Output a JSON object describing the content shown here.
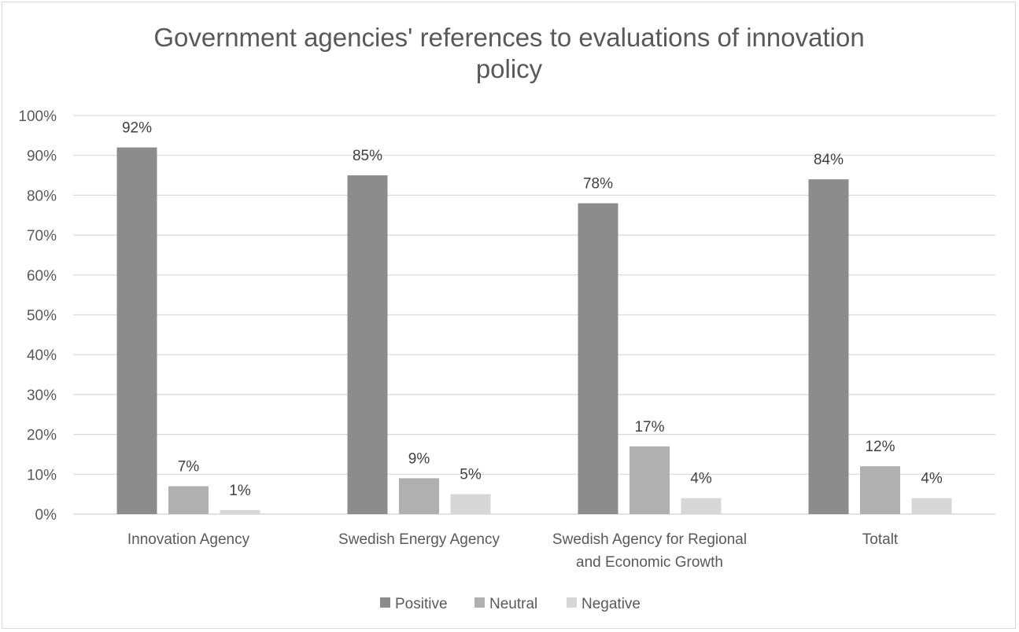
{
  "chart_data": {
    "type": "bar",
    "title": "Government agencies' references to evaluations of innovation policy",
    "title_lines": [
      "Government agencies' references to evaluations of innovation",
      "policy"
    ],
    "categories": [
      "Innovation Agency",
      "Swedish Energy Agency",
      "Swedish Agency for Regional and Economic Growth",
      "Totalt"
    ],
    "category_lines": [
      [
        "Innovation Agency"
      ],
      [
        "Swedish Energy Agency"
      ],
      [
        "Swedish Agency for Regional",
        "and Economic Growth"
      ],
      [
        "Totalt"
      ]
    ],
    "series": [
      {
        "name": "Positive",
        "color": "#8c8c8c",
        "values": [
          92,
          85,
          78,
          84
        ],
        "labels": [
          "92%",
          "85%",
          "78%",
          "84%"
        ]
      },
      {
        "name": "Neutral",
        "color": "#b0b0b0",
        "values": [
          7,
          9,
          17,
          12
        ],
        "labels": [
          "7%",
          "9%",
          "17%",
          "12%"
        ]
      },
      {
        "name": "Negative",
        "color": "#d7d7d7",
        "values": [
          1,
          5,
          4,
          4
        ],
        "labels": [
          "1%",
          "5%",
          "4%",
          "4%"
        ]
      }
    ],
    "ylim": [
      0,
      100
    ],
    "yticks": [
      "0%",
      "10%",
      "20%",
      "30%",
      "40%",
      "50%",
      "60%",
      "70%",
      "80%",
      "90%",
      "100%"
    ],
    "xlabel": "",
    "ylabel": "",
    "grid": true,
    "legend_position": "bottom"
  }
}
